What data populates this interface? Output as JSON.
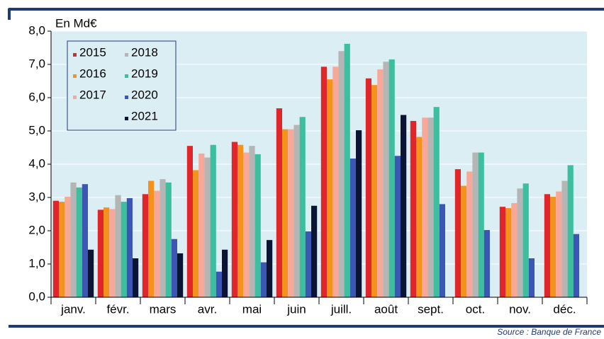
{
  "chart_data": {
    "type": "bar",
    "y_label": "En Md€",
    "source": "Source : Banque de France",
    "categories": [
      "janv.",
      "févr.",
      "mars",
      "avr.",
      "mai",
      "juin",
      "juill.",
      "août",
      "sept.",
      "oct.",
      "nov.",
      "déc."
    ],
    "series": [
      {
        "name": "2015",
        "color": "#e0262b",
        "values": [
          2.9,
          2.63,
          3.1,
          4.55,
          4.67,
          5.68,
          6.93,
          6.58,
          5.3,
          3.85,
          2.72,
          3.1
        ]
      },
      {
        "name": "2016",
        "color": "#f5921e",
        "values": [
          2.87,
          2.7,
          3.5,
          3.82,
          4.58,
          5.05,
          6.55,
          6.38,
          4.82,
          3.35,
          2.68,
          3.02
        ]
      },
      {
        "name": "2017",
        "color": "#f8a898",
        "values": [
          3.02,
          2.65,
          3.2,
          4.32,
          4.35,
          5.05,
          6.93,
          6.85,
          5.4,
          3.78,
          2.83,
          3.18
        ]
      },
      {
        "name": "2018",
        "color": "#b5b5b5",
        "values": [
          3.45,
          3.07,
          3.55,
          4.2,
          4.55,
          5.18,
          7.4,
          7.08,
          5.4,
          4.35,
          3.27,
          3.5
        ]
      },
      {
        "name": "2019",
        "color": "#3dbf9f",
        "values": [
          3.3,
          2.87,
          3.45,
          4.58,
          4.3,
          5.42,
          7.62,
          7.15,
          5.72,
          4.35,
          3.42,
          3.97
        ]
      },
      {
        "name": "2020",
        "color": "#3b57b3",
        "values": [
          3.4,
          2.98,
          1.75,
          0.77,
          1.05,
          1.98,
          4.17,
          4.25,
          2.8,
          2.02,
          1.17,
          1.9
        ]
      },
      {
        "name": "2021",
        "color": "#0b1533",
        "values": [
          1.43,
          1.17,
          1.32,
          1.43,
          1.72,
          2.75,
          5.02,
          5.48,
          null,
          null,
          null,
          null
        ]
      }
    ],
    "ylim": [
      0,
      8
    ],
    "yticks": [
      {
        "value": 0,
        "label": "0,0"
      },
      {
        "value": 1,
        "label": "1,0"
      },
      {
        "value": 2,
        "label": "2,0"
      },
      {
        "value": 3,
        "label": "3,0"
      },
      {
        "value": 4,
        "label": "4,0"
      },
      {
        "value": 5,
        "label": "5,0"
      },
      {
        "value": 6,
        "label": "6,0"
      },
      {
        "value": 7,
        "label": "7,0"
      },
      {
        "value": 8,
        "label": "8,0"
      }
    ],
    "grid": true,
    "legend": "upper left"
  }
}
